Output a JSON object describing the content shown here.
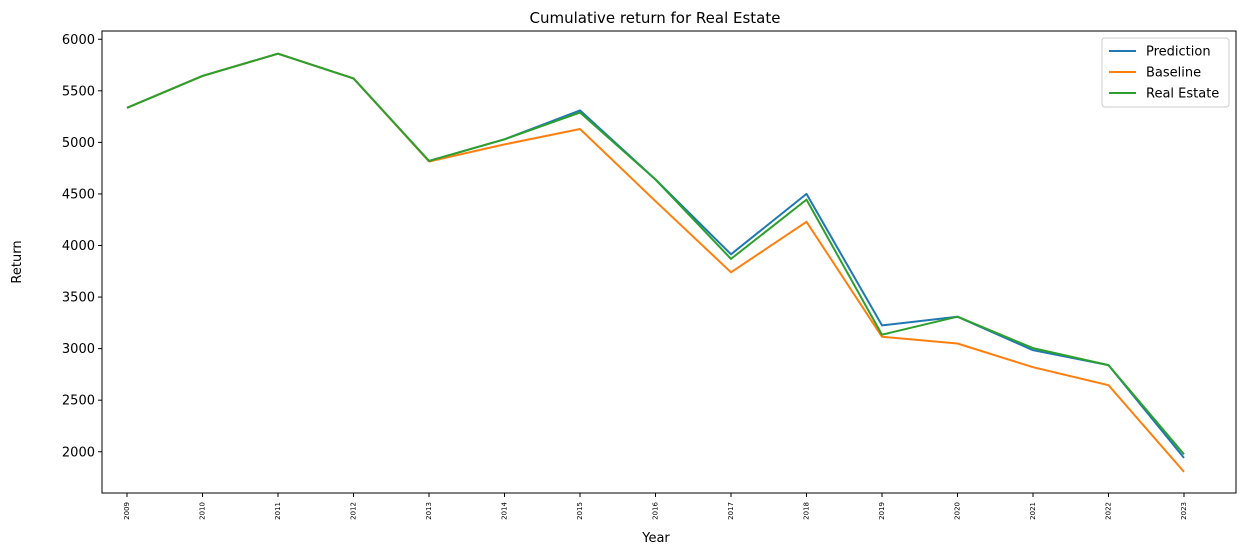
{
  "chart_data": {
    "type": "line",
    "title": "Cumulative return for Real Estate",
    "xlabel": "Year",
    "ylabel": "Return",
    "categories": [
      "2009",
      "2010",
      "2011",
      "2012",
      "2013",
      "2014",
      "2015",
      "2016",
      "2017",
      "2018",
      "2019",
      "2020",
      "2021",
      "2022",
      "2023"
    ],
    "yticks": [
      2000,
      2500,
      3000,
      3500,
      4000,
      4500,
      5000,
      5500,
      6000
    ],
    "ylim": [
      1600,
      6080
    ],
    "grid": false,
    "legend_position": "top-right",
    "series": [
      {
        "name": "Prediction",
        "color": "#1f77b4",
        "values": [
          5335,
          5645,
          5860,
          5620,
          4820,
          5030,
          5310,
          4640,
          3915,
          4500,
          3225,
          3310,
          2985,
          2840,
          1940
        ]
      },
      {
        "name": "Baseline",
        "color": "#ff7f0e",
        "values": [
          5335,
          5645,
          5860,
          5620,
          4815,
          4980,
          5130,
          4430,
          3740,
          4230,
          3115,
          3050,
          2820,
          2645,
          1805
        ]
      },
      {
        "name": "Real Estate",
        "color": "#2ca02c",
        "values": [
          5335,
          5645,
          5860,
          5620,
          4820,
          5030,
          5290,
          4640,
          3870,
          4445,
          3135,
          3310,
          3005,
          2840,
          1975
        ]
      }
    ]
  }
}
